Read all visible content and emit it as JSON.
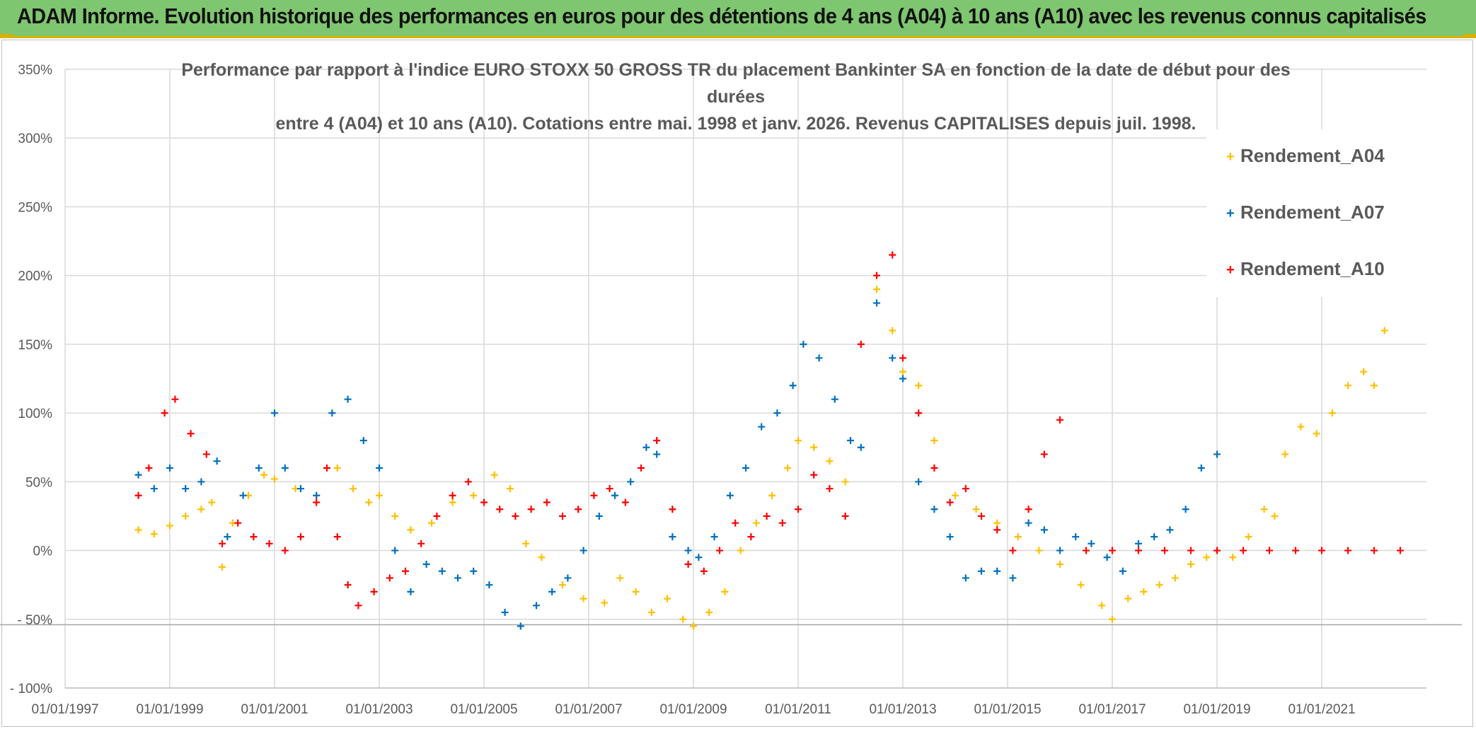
{
  "header": {
    "title": "ADAM Informe. Evolution historique des performances en euros pour des détentions de 4 ans (A04) à 10 ans (A10) avec les revenus connus capitalisés"
  },
  "chart_data": {
    "type": "scatter",
    "title": "Performance par rapport à l'indice EURO STOXX 50 GROSS TR  du placement Bankinter SA en fonction de la date de début pour des durées",
    "subtitle": "entre 4 (A04) et 10 ans (A10). Cotations entre mai. 1998 et janv. 2026. Revenus CAPITALISES depuis juil. 1998.",
    "xlim": [
      1997.0,
      2023.0
    ],
    "ylim": [
      -100,
      350
    ],
    "x_ticks": [
      1997,
      1999,
      2001,
      2003,
      2005,
      2007,
      2009,
      2011,
      2013,
      2015,
      2017,
      2019,
      2021
    ],
    "x_tick_labels": [
      "01/01/1997",
      "01/01/1999",
      "01/01/2001",
      "01/01/2003",
      "01/01/2005",
      "01/01/2007",
      "01/01/2009",
      "01/01/2011",
      "01/01/2013",
      "01/01/2015",
      "01/01/2017",
      "01/01/2019",
      "01/01/2021"
    ],
    "y_ticks": [
      -100,
      -50,
      0,
      50,
      100,
      150,
      200,
      250,
      300,
      350
    ],
    "y_tick_labels": [
      "- 100%",
      "- 50%",
      "0%",
      "50%",
      "100%",
      "150%",
      "200%",
      "250%",
      "300%",
      "350%"
    ],
    "grid": true,
    "legend_position": "top-right",
    "marker": "+",
    "series": [
      {
        "name": "Rendement_A04",
        "color": "#ffc000",
        "x": [
          1998.4,
          1998.7,
          1999.0,
          1999.3,
          1999.6,
          1999.8,
          2000.0,
          2000.2,
          2000.5,
          2000.8,
          2001.0,
          2001.4,
          2001.8,
          2002.2,
          2002.5,
          2002.8,
          2003.0,
          2003.3,
          2003.6,
          2004.0,
          2004.4,
          2004.8,
          2005.2,
          2005.5,
          2005.8,
          2006.1,
          2006.5,
          2006.9,
          2007.3,
          2007.6,
          2007.9,
          2008.2,
          2008.5,
          2008.8,
          2009.0,
          2009.3,
          2009.6,
          2009.9,
          2010.2,
          2010.5,
          2010.8,
          2011.0,
          2011.3,
          2011.6,
          2011.9,
          2012.2,
          2012.5,
          2012.8,
          2013.0,
          2013.3,
          2013.6,
          2014.0,
          2014.4,
          2014.8,
          2015.2,
          2015.6,
          2016.0,
          2016.4,
          2016.8,
          2017.0,
          2017.3,
          2017.6,
          2017.9,
          2018.2,
          2018.5,
          2018.8,
          2019.0,
          2019.3,
          2019.6,
          2019.9,
          2020.1,
          2020.3,
          2020.6,
          2020.9,
          2021.2,
          2021.5,
          2021.8,
          2022.0,
          2022.2
        ],
        "y": [
          15,
          12,
          18,
          25,
          30,
          35,
          -12,
          20,
          40,
          55,
          52,
          45,
          40,
          60,
          45,
          35,
          40,
          25,
          15,
          20,
          35,
          40,
          55,
          45,
          5,
          -5,
          -25,
          -35,
          -38,
          -20,
          -30,
          -45,
          -35,
          -50,
          -55,
          -45,
          -30,
          0,
          20,
          40,
          60,
          80,
          75,
          65,
          50,
          150,
          190,
          160,
          130,
          120,
          80,
          40,
          30,
          20,
          10,
          0,
          -10,
          -25,
          -40,
          -50,
          -35,
          -30,
          -25,
          -20,
          -10,
          -5,
          0,
          -5,
          10,
          30,
          25,
          70,
          90,
          85,
          100,
          120,
          130,
          120,
          160
        ]
      },
      {
        "name": "Rendement_A07",
        "color": "#0070c0",
        "x": [
          1998.4,
          1998.7,
          1999.0,
          1999.3,
          1999.6,
          1999.9,
          2000.1,
          2000.4,
          2000.7,
          2001.0,
          2001.2,
          2001.5,
          2001.8,
          2002.1,
          2002.4,
          2002.7,
          2003.0,
          2003.3,
          2003.6,
          2003.9,
          2004.2,
          2004.5,
          2004.8,
          2005.1,
          2005.4,
          2005.7,
          2006.0,
          2006.3,
          2006.6,
          2006.9,
          2007.2,
          2007.5,
          2007.8,
          2008.1,
          2008.3,
          2008.6,
          2008.9,
          2009.1,
          2009.4,
          2009.7,
          2010.0,
          2010.3,
          2010.6,
          2010.9,
          2011.1,
          2011.4,
          2011.7,
          2012.0,
          2012.2,
          2012.5,
          2012.8,
          2013.0,
          2013.3,
          2013.6,
          2013.9,
          2014.2,
          2014.5,
          2014.8,
          2015.1,
          2015.4,
          2015.7,
          2016.0,
          2016.3,
          2016.6,
          2016.9,
          2017.2,
          2017.5,
          2017.8,
          2018.1,
          2018.4,
          2018.7,
          2019.0
        ],
        "y": [
          55,
          45,
          60,
          45,
          50,
          65,
          10,
          40,
          60,
          100,
          60,
          45,
          40,
          100,
          110,
          80,
          60,
          0,
          -30,
          -10,
          -15,
          -20,
          -15,
          -25,
          -45,
          -55,
          -40,
          -30,
          -20,
          0,
          25,
          40,
          50,
          75,
          70,
          10,
          0,
          -5,
          10,
          40,
          60,
          90,
          100,
          120,
          150,
          140,
          110,
          80,
          75,
          180,
          140,
          125,
          50,
          30,
          10,
          -20,
          -15,
          -15,
          -20,
          20,
          15,
          0,
          10,
          5,
          -5,
          -15,
          5,
          10,
          15,
          30,
          60,
          70
        ]
      },
      {
        "name": "Rendement_A10",
        "color": "#ff0000",
        "x": [
          1998.4,
          1998.6,
          1998.9,
          1999.1,
          1999.4,
          1999.7,
          2000.0,
          2000.3,
          2000.6,
          2000.9,
          2001.2,
          2001.5,
          2001.8,
          2002.0,
          2002.2,
          2002.4,
          2002.6,
          2002.9,
          2003.2,
          2003.5,
          2003.8,
          2004.1,
          2004.4,
          2004.7,
          2005.0,
          2005.3,
          2005.6,
          2005.9,
          2006.2,
          2006.5,
          2006.8,
          2007.1,
          2007.4,
          2007.7,
          2008.0,
          2008.3,
          2008.6,
          2008.9,
          2009.2,
          2009.5,
          2009.8,
          2010.1,
          2010.4,
          2010.7,
          2011.0,
          2011.3,
          2011.6,
          2011.9,
          2012.2,
          2012.5,
          2012.8,
          2013.0,
          2013.3,
          2013.6,
          2013.9,
          2014.2,
          2014.5,
          2014.8,
          2015.1,
          2015.4,
          2015.7,
          2016.0,
          2016.5,
          2017.0,
          2017.5,
          2018.0,
          2018.5,
          2019.0,
          2019.5,
          2020.0,
          2020.5,
          2021.0,
          2021.5,
          2022.0,
          2022.5
        ],
        "y": [
          40,
          60,
          100,
          110,
          85,
          70,
          5,
          20,
          10,
          5,
          0,
          10,
          35,
          60,
          10,
          -25,
          -40,
          -30,
          -20,
          -15,
          5,
          25,
          40,
          50,
          35,
          30,
          25,
          30,
          35,
          25,
          30,
          40,
          45,
          35,
          60,
          80,
          30,
          -10,
          -15,
          0,
          20,
          10,
          25,
          20,
          30,
          55,
          45,
          25,
          150,
          200,
          215,
          140,
          100,
          60,
          35,
          45,
          25,
          15,
          0,
          30,
          70,
          95,
          0,
          0,
          0,
          0,
          0,
          0,
          0,
          0,
          0,
          0,
          0,
          0,
          0
        ]
      }
    ]
  }
}
